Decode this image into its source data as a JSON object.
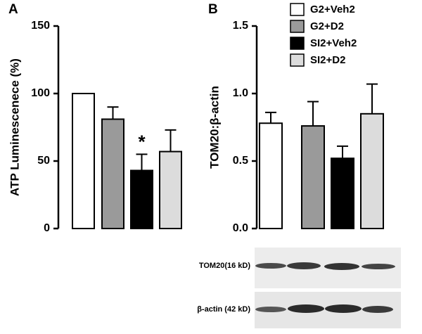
{
  "chart_data": [
    {
      "type": "bar",
      "panel_label": "A",
      "ylabel": "ATP Luminescenece (%)",
      "ylim": [
        0,
        150
      ],
      "yticks": [
        0,
        50,
        100,
        150
      ],
      "series": [
        {
          "color": "#ffffff",
          "values": [
            100
          ],
          "errors": [
            0
          ]
        },
        {
          "color": "#9a9a9a",
          "values": [
            81
          ],
          "errors": [
            9
          ]
        },
        {
          "color": "#000000",
          "values": [
            43
          ],
          "errors": [
            12
          ]
        },
        {
          "color": "#dcdcdc",
          "values": [
            57
          ],
          "errors": [
            16
          ]
        }
      ],
      "annotation": "*"
    },
    {
      "type": "bar",
      "panel_label": "B",
      "ylabel": "TOM20:β-actin",
      "ylim": [
        0,
        1.5
      ],
      "yticks": [
        {
          "value": 0,
          "label": "0.0"
        },
        0.5,
        {
          "value": 1,
          "label": "1.0"
        },
        1.5
      ],
      "series": [
        {
          "name": "G2+Veh2",
          "color": "#ffffff",
          "values": [
            0.78
          ],
          "errors": [
            0.08
          ]
        },
        {
          "name": "G2+D2",
          "color": "#9a9a9a",
          "values": [
            0.76
          ],
          "errors": [
            0.18
          ]
        },
        {
          "name": "SI2+Veh2",
          "color": "#000000",
          "values": [
            0.52
          ],
          "errors": [
            0.09
          ]
        },
        {
          "name": "SI2+D2",
          "color": "#dcdcdc",
          "values": [
            0.85
          ],
          "errors": [
            0.22
          ]
        }
      ]
    }
  ],
  "blot": {
    "labels": [
      "TOM20(16 kD)",
      "β-actin (42 kD)"
    ]
  }
}
